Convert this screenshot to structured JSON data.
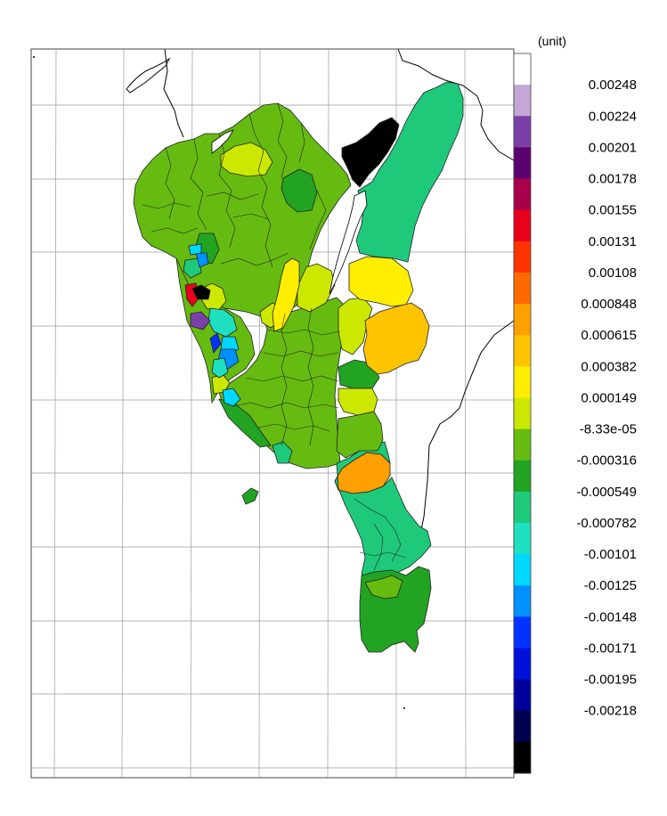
{
  "colorbar": {
    "unit_label": "(unit)",
    "labels": [
      "0.00248",
      "0.00224",
      "0.00201",
      "0.00178",
      "0.00155",
      "0.00131",
      "0.00108",
      "0.000848",
      "0.000615",
      "0.000382",
      "0.000149",
      "-8.33e-05",
      "-0.000316",
      "-0.000549",
      "-0.000782",
      "-0.00101",
      "-0.00125",
      "-0.00148",
      "-0.00171",
      "-0.00195",
      "-0.00218"
    ],
    "colors": [
      "#ffffff",
      "#c3a7d6",
      "#7b3fa8",
      "#5a0070",
      "#a8004a",
      "#e8001c",
      "#ff3300",
      "#ff6a00",
      "#ffa000",
      "#ffc400",
      "#ffee00",
      "#cce800",
      "#66bb11",
      "#22a322",
      "#1ec97a",
      "#1ee0c0",
      "#00d8ff",
      "#0090ff",
      "#0033ff",
      "#0010d8",
      "#00009a",
      "#000050",
      "#000000"
    ]
  },
  "chart_data": {
    "type": "heatmap",
    "title": "",
    "colorbar_min": -0.00218,
    "colorbar_max": 0.00248,
    "unit": "(unit)",
    "grid": true
  }
}
